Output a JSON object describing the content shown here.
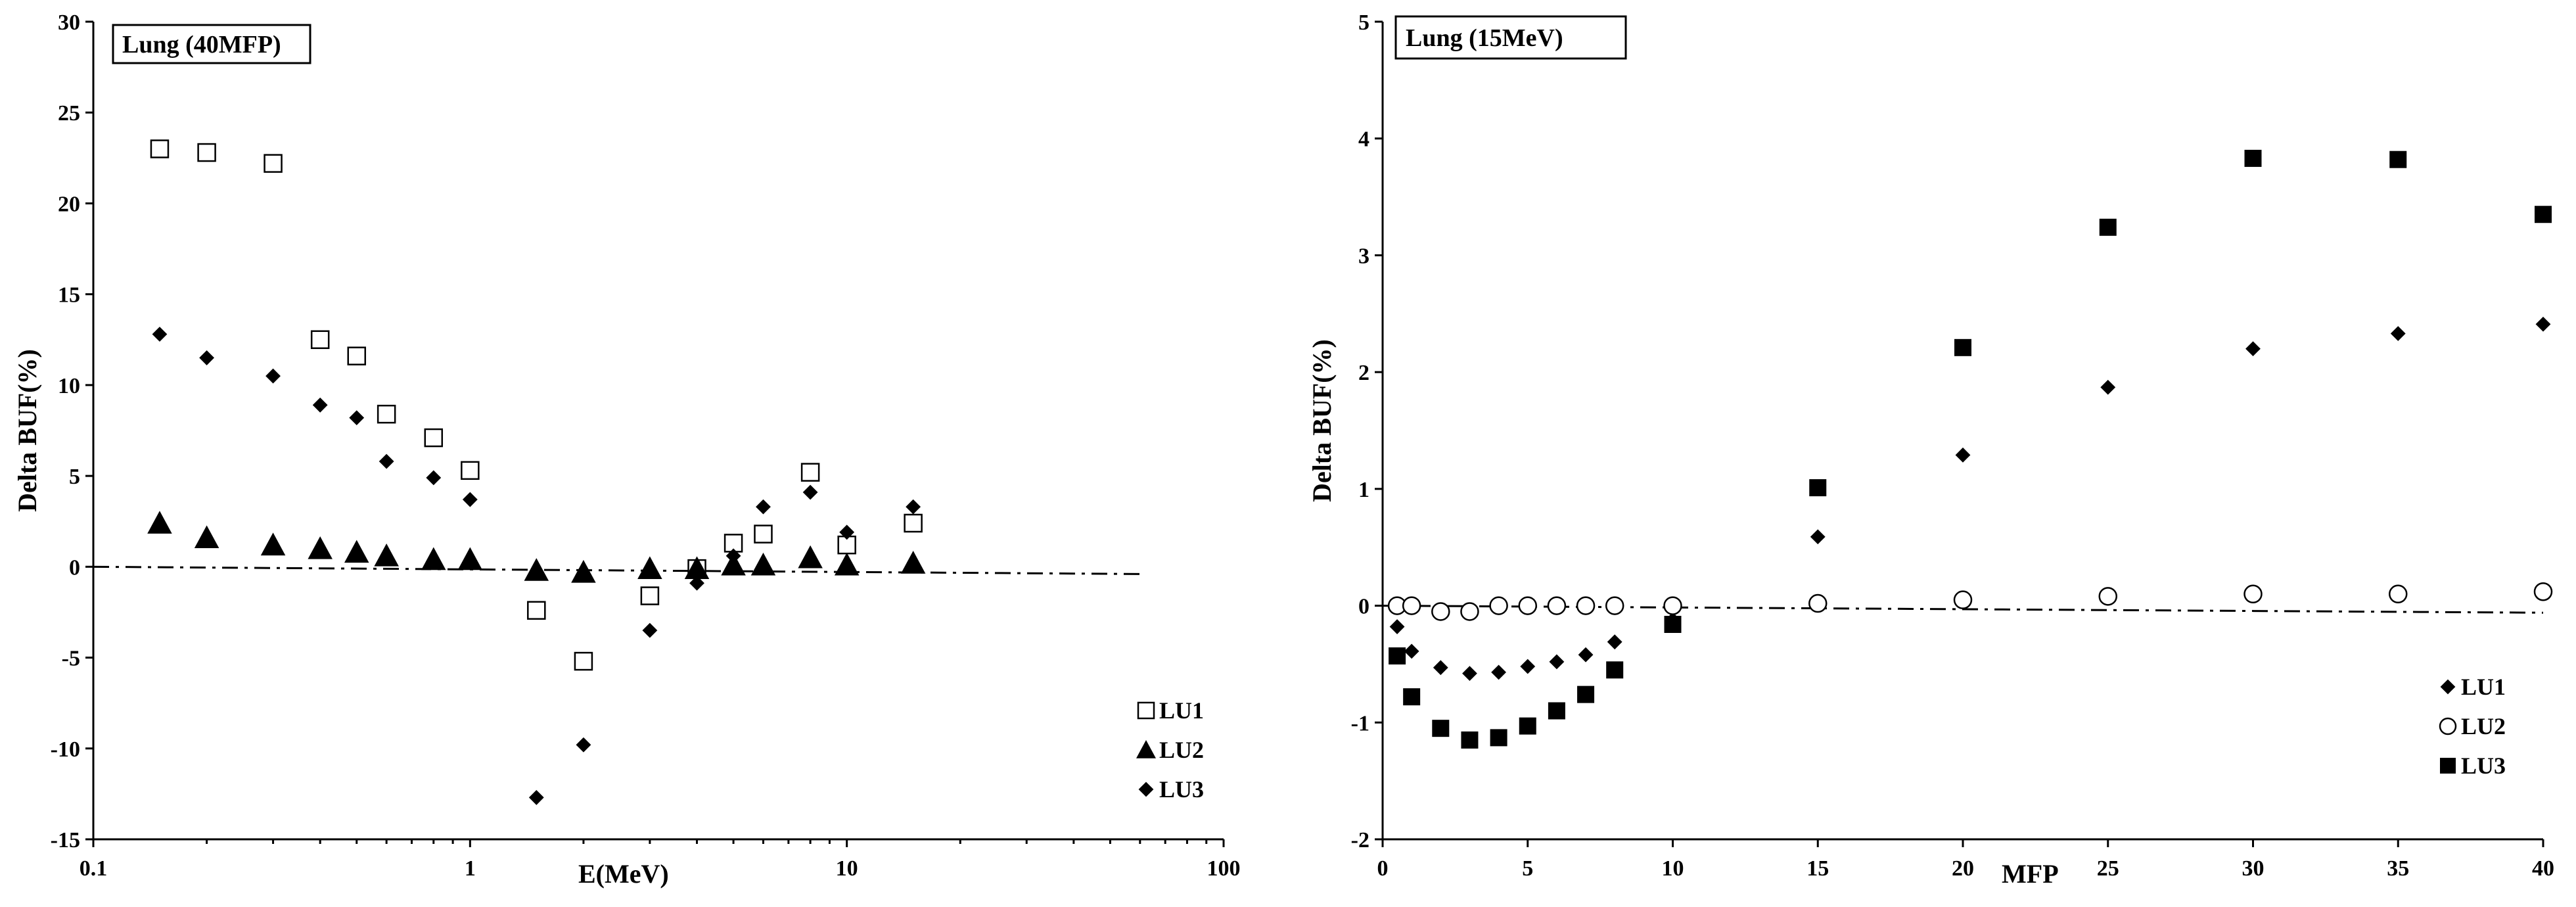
{
  "chart_data": [
    {
      "type": "scatter",
      "title": "Lung (40MFP)",
      "xlabel": "E(MeV)",
      "ylabel": "Delta BUF(%)",
      "xscale": "log",
      "xlim": [
        0.1,
        100
      ],
      "ylim": [
        -15,
        30
      ],
      "x_ticks": [
        0.1,
        1,
        10,
        100
      ],
      "x_tick_labels": [
        "0.1",
        "1",
        "10",
        "100"
      ],
      "y_ticks": [
        -15,
        -10,
        -5,
        0,
        5,
        10,
        15,
        20,
        25,
        30
      ],
      "y_tick_labels": [
        "-15",
        "-10",
        "-5",
        "0",
        "5",
        "10",
        "15",
        "20",
        "25",
        "30"
      ],
      "legend_position": "bottom-right",
      "reference_line": {
        "style": "dash-dot",
        "x": [
          0.1,
          60
        ],
        "y": [
          0,
          -0.4
        ]
      },
      "series": [
        {
          "name": "LU1",
          "marker": "open-square",
          "x": [
            0.15,
            0.2,
            0.3,
            0.4,
            0.5,
            0.6,
            0.8,
            1,
            1.5,
            2,
            3,
            4,
            5,
            6,
            8,
            10,
            15
          ],
          "y": [
            23.0,
            22.8,
            22.2,
            12.5,
            11.6,
            8.4,
            7.1,
            5.3,
            -2.4,
            -5.2,
            -1.6,
            -0.1,
            1.3,
            1.8,
            5.2,
            1.2,
            2.4
          ]
        },
        {
          "name": "LU2",
          "marker": "filled-triangle",
          "x": [
            0.15,
            0.2,
            0.3,
            0.4,
            0.5,
            0.6,
            0.8,
            1,
            1.5,
            2,
            3,
            4,
            5,
            6,
            8,
            10,
            15
          ],
          "y": [
            2.4,
            1.6,
            1.2,
            1.0,
            0.8,
            0.6,
            0.4,
            0.4,
            -0.2,
            -0.3,
            -0.1,
            -0.1,
            0.1,
            0.1,
            0.5,
            0.1,
            0.2
          ]
        },
        {
          "name": "LU3",
          "marker": "filled-diamond",
          "x": [
            0.15,
            0.2,
            0.3,
            0.4,
            0.5,
            0.6,
            0.8,
            1,
            1.5,
            2,
            3,
            4,
            5,
            6,
            8,
            10,
            15
          ],
          "y": [
            12.8,
            11.5,
            10.5,
            8.9,
            8.2,
            5.8,
            4.9,
            3.7,
            -12.7,
            -9.8,
            -3.5,
            -0.9,
            0.6,
            3.3,
            4.1,
            1.9,
            3.3
          ]
        }
      ]
    },
    {
      "type": "scatter",
      "title": "Lung (15MeV)",
      "xlabel": "MFP",
      "ylabel": "Delta BUF(%)",
      "xscale": "linear",
      "xlim": [
        0,
        40
      ],
      "ylim": [
        -2,
        5
      ],
      "x_ticks": [
        0,
        5,
        10,
        15,
        20,
        25,
        30,
        35,
        40
      ],
      "x_tick_labels": [
        "0",
        "5",
        "10",
        "15",
        "20",
        "25",
        "30",
        "35",
        "40"
      ],
      "y_ticks": [
        -2,
        -1,
        0,
        1,
        2,
        3,
        4,
        5
      ],
      "y_tick_labels": [
        "-2",
        "-1",
        "0",
        "1",
        "2",
        "3",
        "4",
        "5"
      ],
      "legend_position": "bottom-right",
      "reference_line": {
        "style": "dash-dot",
        "x": [
          0,
          40
        ],
        "y": [
          0,
          -0.06
        ]
      },
      "series": [
        {
          "name": "LU1",
          "marker": "filled-diamond",
          "x": [
            0.5,
            1,
            2,
            3,
            4,
            5,
            6,
            7,
            8,
            10,
            15,
            20,
            25,
            30,
            35,
            40
          ],
          "y": [
            -0.18,
            -0.39,
            -0.53,
            -0.58,
            -0.57,
            -0.52,
            -0.48,
            -0.42,
            -0.31,
            -0.12,
            0.59,
            1.29,
            1.87,
            2.2,
            2.33,
            2.41
          ]
        },
        {
          "name": "LU2",
          "marker": "open-circle",
          "x": [
            0.5,
            1,
            2,
            3,
            4,
            5,
            6,
            7,
            8,
            10,
            15,
            20,
            25,
            30,
            35,
            40
          ],
          "y": [
            0.0,
            0.0,
            -0.05,
            -0.05,
            0.0,
            0.0,
            0.0,
            0.0,
            0.0,
            0.0,
            0.02,
            0.05,
            0.08,
            0.1,
            0.1,
            0.12
          ]
        },
        {
          "name": "LU3",
          "marker": "filled-square",
          "x": [
            0.5,
            1,
            2,
            3,
            4,
            5,
            6,
            7,
            8,
            10,
            15,
            20,
            25,
            30,
            35,
            40
          ],
          "y": [
            -0.43,
            -0.78,
            -1.05,
            -1.15,
            -1.13,
            -1.03,
            -0.9,
            -0.76,
            -0.55,
            -0.16,
            1.01,
            2.21,
            3.24,
            3.83,
            3.82,
            3.35
          ]
        }
      ]
    }
  ]
}
